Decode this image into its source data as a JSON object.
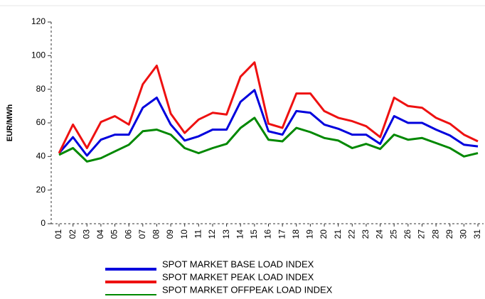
{
  "chart_data": {
    "type": "line",
    "y_label": "EUR/MWh",
    "categories": [
      "01",
      "02",
      "03",
      "04",
      "05",
      "06",
      "07",
      "08",
      "09",
      "10",
      "11",
      "12",
      "13",
      "14",
      "15",
      "16",
      "17",
      "18",
      "19",
      "20",
      "21",
      "22",
      "23",
      "24",
      "25",
      "26",
      "27",
      "28",
      "29",
      "30",
      "31"
    ],
    "series": [
      {
        "name": "SPOT MARKET BASE LOAD INDEX",
        "color": "#0000dd",
        "values": [
          42,
          51.5,
          40.5,
          50,
          53,
          53,
          69,
          75,
          59,
          49.5,
          52,
          56,
          56,
          72.5,
          79.5,
          55,
          53,
          67,
          66,
          59,
          56.5,
          53,
          53,
          47.5,
          64,
          60,
          60,
          56,
          52.5,
          47,
          46
        ]
      },
      {
        "name": "SPOT MARKET PEAK LOAD INDEX",
        "color": "#ee1111",
        "values": [
          42,
          59,
          45,
          60.5,
          64,
          59,
          83,
          94,
          65.5,
          54,
          62,
          66,
          65,
          87.5,
          96,
          59.5,
          57,
          77.5,
          77.5,
          67,
          63,
          61,
          58,
          51.5,
          75,
          70,
          69,
          63,
          59.5,
          53,
          49
        ]
      },
      {
        "name": "SPOT MARKET OFFPEAK LOAD INDEX",
        "color": "#008800",
        "values": [
          41,
          45,
          37,
          39,
          43,
          47,
          55,
          56,
          53,
          45,
          42,
          45,
          47.5,
          57,
          63,
          50,
          49,
          57,
          54.5,
          51,
          49.5,
          45,
          47.5,
          44.5,
          53,
          50,
          51,
          48,
          45,
          40,
          42
        ]
      }
    ],
    "ylim": [
      0,
      120
    ],
    "yticks": [
      0,
      20,
      40,
      60,
      80,
      100,
      120
    ]
  }
}
